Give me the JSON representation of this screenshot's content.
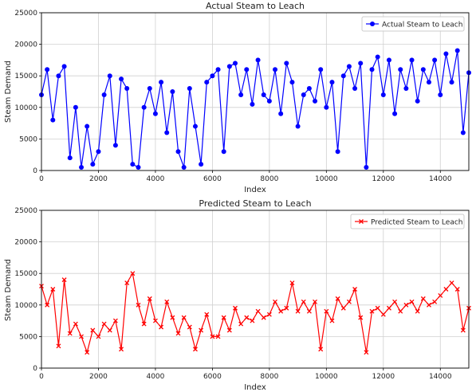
{
  "chart_data": [
    {
      "type": "line",
      "title": "Actual Steam to Leach",
      "xlabel": "Index",
      "ylabel": "Steam Demand",
      "xlim": [
        0,
        15000
      ],
      "ylim": [
        0,
        25000
      ],
      "xticks": [
        0,
        2000,
        4000,
        6000,
        8000,
        10000,
        12000,
        14000
      ],
      "yticks": [
        0,
        5000,
        10000,
        15000,
        20000,
        25000
      ],
      "grid": true,
      "legend_position": "top-right",
      "series": [
        {
          "name": "Actual Steam to Leach",
          "color": "#0000ff",
          "marker": "circle",
          "x": [
            0,
            200,
            400,
            600,
            800,
            1000,
            1200,
            1400,
            1600,
            1800,
            2000,
            2200,
            2400,
            2600,
            2800,
            3000,
            3200,
            3400,
            3600,
            3800,
            4000,
            4200,
            4400,
            4600,
            4800,
            5000,
            5200,
            5400,
            5600,
            5800,
            6000,
            6200,
            6400,
            6600,
            6800,
            7000,
            7200,
            7400,
            7600,
            7800,
            8000,
            8200,
            8400,
            8600,
            8800,
            9000,
            9200,
            9400,
            9600,
            9800,
            10000,
            10200,
            10400,
            10600,
            10800,
            11000,
            11200,
            11400,
            11600,
            11800,
            12000,
            12200,
            12400,
            12600,
            12800,
            13000,
            13200,
            13400,
            13600,
            13800,
            14000,
            14200,
            14400,
            14600,
            14800,
            15000
          ],
          "values": [
            12000,
            16000,
            8000,
            15000,
            16500,
            2000,
            10000,
            500,
            7000,
            1000,
            3000,
            12000,
            15000,
            4000,
            14500,
            13000,
            1000,
            500,
            10000,
            13000,
            9000,
            14000,
            6000,
            12500,
            3000,
            500,
            13000,
            7000,
            1000,
            14000,
            15000,
            16000,
            3000,
            16500,
            17000,
            12000,
            16000,
            10500,
            17500,
            12000,
            11000,
            16000,
            9000,
            17000,
            14000,
            7000,
            12000,
            13000,
            11000,
            16000,
            10000,
            14000,
            3000,
            15000,
            16500,
            13000,
            17000,
            500,
            16000,
            18000,
            12000,
            17500,
            9000,
            16000,
            13000,
            17500,
            11000,
            16000,
            14000,
            17500,
            12000,
            18500,
            14000,
            19000,
            6000,
            15500
          ]
        }
      ]
    },
    {
      "type": "line",
      "title": "Predicted Steam to Leach",
      "xlabel": "Index",
      "ylabel": "Steam Demand",
      "xlim": [
        0,
        15000
      ],
      "ylim": [
        0,
        25000
      ],
      "xticks": [
        0,
        2000,
        4000,
        6000,
        8000,
        10000,
        12000,
        14000
      ],
      "yticks": [
        0,
        5000,
        10000,
        15000,
        20000,
        25000
      ],
      "grid": true,
      "legend_position": "top-right",
      "series": [
        {
          "name": "Predicted Steam to Leach",
          "color": "#ff0000",
          "marker": "x",
          "x": [
            0,
            200,
            400,
            600,
            800,
            1000,
            1200,
            1400,
            1600,
            1800,
            2000,
            2200,
            2400,
            2600,
            2800,
            3000,
            3200,
            3400,
            3600,
            3800,
            4000,
            4200,
            4400,
            4600,
            4800,
            5000,
            5200,
            5400,
            5600,
            5800,
            6000,
            6200,
            6400,
            6600,
            6800,
            7000,
            7200,
            7400,
            7600,
            7800,
            8000,
            8200,
            8400,
            8600,
            8800,
            9000,
            9200,
            9400,
            9600,
            9800,
            10000,
            10200,
            10400,
            10600,
            10800,
            11000,
            11200,
            11400,
            11600,
            11800,
            12000,
            12200,
            12400,
            12600,
            12800,
            13000,
            13200,
            13400,
            13600,
            13800,
            14000,
            14200,
            14400,
            14600,
            14800,
            15000
          ],
          "values": [
            13000,
            10000,
            12500,
            3500,
            14000,
            5500,
            7000,
            5000,
            2500,
            6000,
            5000,
            7000,
            6000,
            7500,
            3000,
            13500,
            15000,
            10000,
            7000,
            11000,
            7500,
            6500,
            10500,
            8000,
            5500,
            8000,
            6500,
            3000,
            6000,
            8500,
            5000,
            5000,
            8000,
            6000,
            9500,
            7000,
            8000,
            7500,
            9000,
            8000,
            8500,
            10500,
            9000,
            9500,
            13500,
            9000,
            10500,
            9000,
            10500,
            3000,
            9000,
            7500,
            11000,
            9500,
            10500,
            12500,
            8000,
            2500,
            9000,
            9500,
            8500,
            9500,
            10500,
            9000,
            10000,
            10500,
            9000,
            11000,
            10000,
            10500,
            11500,
            12500,
            13500,
            12500,
            6000,
            9500
          ]
        }
      ]
    }
  ]
}
